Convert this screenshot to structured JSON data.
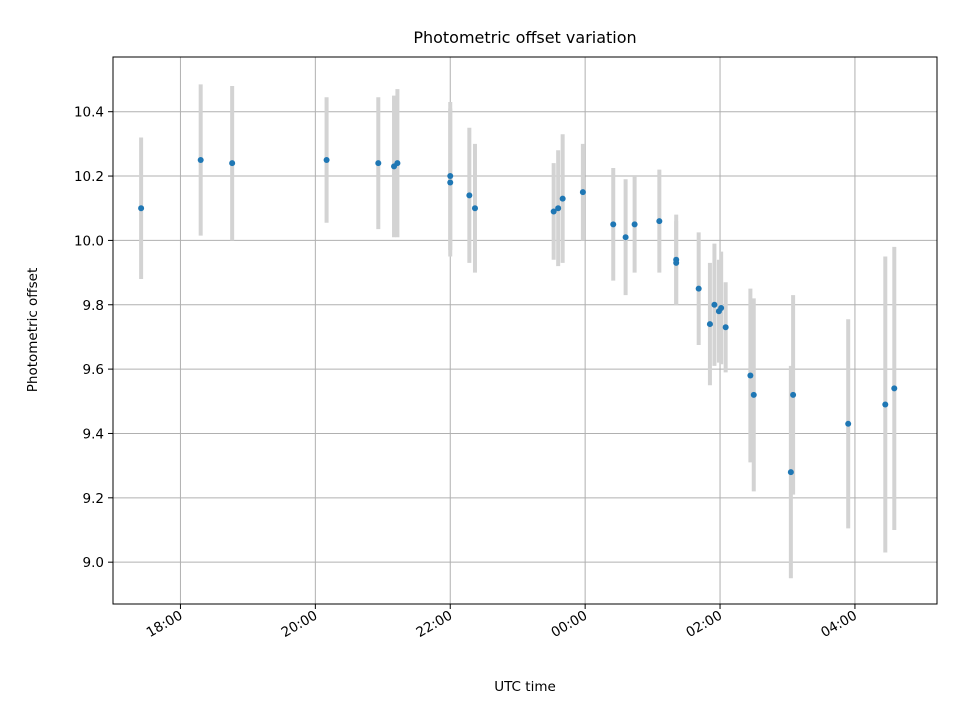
{
  "chart_data": {
    "type": "scatter",
    "title": "Photometric offset variation",
    "xlabel": "UTC time",
    "ylabel": "Photometric offset",
    "x_axis_type": "time",
    "xlim": [
      "17:00",
      "05:13"
    ],
    "ylim": [
      8.87,
      10.57
    ],
    "xticks": [
      "18:00",
      "20:00",
      "22:00",
      "00:00",
      "02:00",
      "04:00"
    ],
    "yticks": [
      9.0,
      9.2,
      9.4,
      9.6,
      9.8,
      10.0,
      10.2,
      10.4
    ],
    "grid": true,
    "point_color": "#1f77b4",
    "errorbar_color": "#d3d3d3",
    "series": [
      {
        "points": [
          {
            "time": "17:25",
            "y": 10.1,
            "err": 0.22
          },
          {
            "time": "18:18",
            "y": 10.25,
            "err": 0.235
          },
          {
            "time": "18:46",
            "y": 10.24,
            "err": 0.24
          },
          {
            "time": "20:10",
            "y": 10.25,
            "err": 0.195
          },
          {
            "time": "20:56",
            "y": 10.24,
            "err": 0.205
          },
          {
            "time": "21:10",
            "y": 10.23,
            "err": 0.22
          },
          {
            "time": "21:13",
            "y": 10.24,
            "err": 0.23
          },
          {
            "time": "22:00",
            "y": 10.2,
            "err": 0.23
          },
          {
            "time": "22:00",
            "y": 10.18,
            "err": 0.23
          },
          {
            "time": "22:17",
            "y": 10.14,
            "err": 0.21
          },
          {
            "time": "22:22",
            "y": 10.1,
            "err": 0.2
          },
          {
            "time": "23:32",
            "y": 10.09,
            "err": 0.15
          },
          {
            "time": "23:36",
            "y": 10.1,
            "err": 0.18
          },
          {
            "time": "23:40",
            "y": 10.13,
            "err": 0.2
          },
          {
            "time": "23:58",
            "y": 10.15,
            "err": 0.15
          },
          {
            "time": "00:25",
            "y": 10.05,
            "err": 0.175
          },
          {
            "time": "00:36",
            "y": 10.01,
            "err": 0.18
          },
          {
            "time": "00:44",
            "y": 10.05,
            "err": 0.15
          },
          {
            "time": "01:06",
            "y": 10.06,
            "err": 0.16
          },
          {
            "time": "01:21",
            "y": 9.94,
            "err": 0.14
          },
          {
            "time": "01:21",
            "y": 9.93,
            "err": 0.13
          },
          {
            "time": "01:41",
            "y": 9.85,
            "err": 0.175
          },
          {
            "time": "01:51",
            "y": 9.74,
            "err": 0.19
          },
          {
            "time": "01:55",
            "y": 9.8,
            "err": 0.19
          },
          {
            "time": "01:59",
            "y": 9.78,
            "err": 0.16
          },
          {
            "time": "02:01",
            "y": 9.79,
            "err": 0.175
          },
          {
            "time": "02:05",
            "y": 9.73,
            "err": 0.14
          },
          {
            "time": "02:27",
            "y": 9.58,
            "err": 0.27
          },
          {
            "time": "02:30",
            "y": 9.52,
            "err": 0.3
          },
          {
            "time": "03:03",
            "y": 9.28,
            "err": 0.33
          },
          {
            "time": "03:05",
            "y": 9.52,
            "err": 0.31
          },
          {
            "time": "03:54",
            "y": 9.43,
            "err": 0.325
          },
          {
            "time": "04:27",
            "y": 9.49,
            "err": 0.46
          },
          {
            "time": "04:35",
            "y": 9.54,
            "err": 0.44
          }
        ]
      }
    ]
  }
}
